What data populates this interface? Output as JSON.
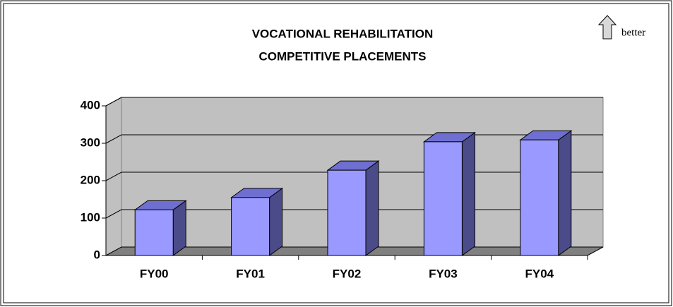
{
  "chart_data": {
    "type": "bar3d",
    "title": [
      "VOCATIONAL REHABILITATION",
      "COMPETITIVE PLACEMENTS"
    ],
    "annotation": "better",
    "categories": [
      "FY00",
      "FY01",
      "FY02",
      "FY03",
      "FY04"
    ],
    "values": [
      122,
      155,
      228,
      304,
      309
    ],
    "color": "#9999ff",
    "side_color": "#4b4b8a",
    "top_color": "#6f6fd2",
    "wall_color": "#c0c0c0",
    "floor_color": "#808080",
    "ylim": [
      0,
      400
    ],
    "yticks": [
      0,
      100,
      200,
      300,
      400
    ],
    "grid": true
  }
}
